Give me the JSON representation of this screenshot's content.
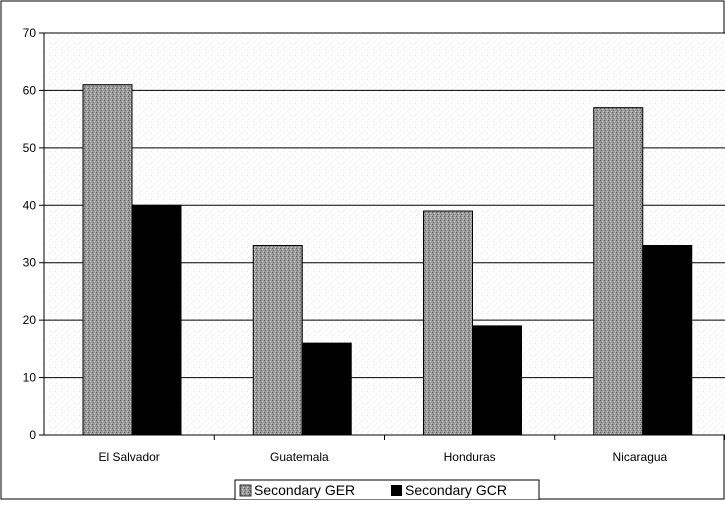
{
  "chart_data": {
    "type": "bar",
    "categories": [
      "El Salvador",
      "Guatemala",
      "Honduras",
      "Nicaragua"
    ],
    "series": [
      {
        "name": "Secondary GER",
        "values": [
          61,
          33,
          39,
          57
        ],
        "color": "#8c8c8c",
        "pattern": "dotted-gray"
      },
      {
        "name": "Secondary GCR",
        "values": [
          40,
          16,
          19,
          33
        ],
        "color": "#000000",
        "pattern": "solid-black"
      }
    ],
    "ylim": [
      0,
      70
    ],
    "yticks": [
      0,
      10,
      20,
      30,
      40,
      50,
      60,
      70
    ],
    "grid": true,
    "legend_position": "bottom-center",
    "title": "",
    "xlabel": "",
    "ylabel": ""
  }
}
